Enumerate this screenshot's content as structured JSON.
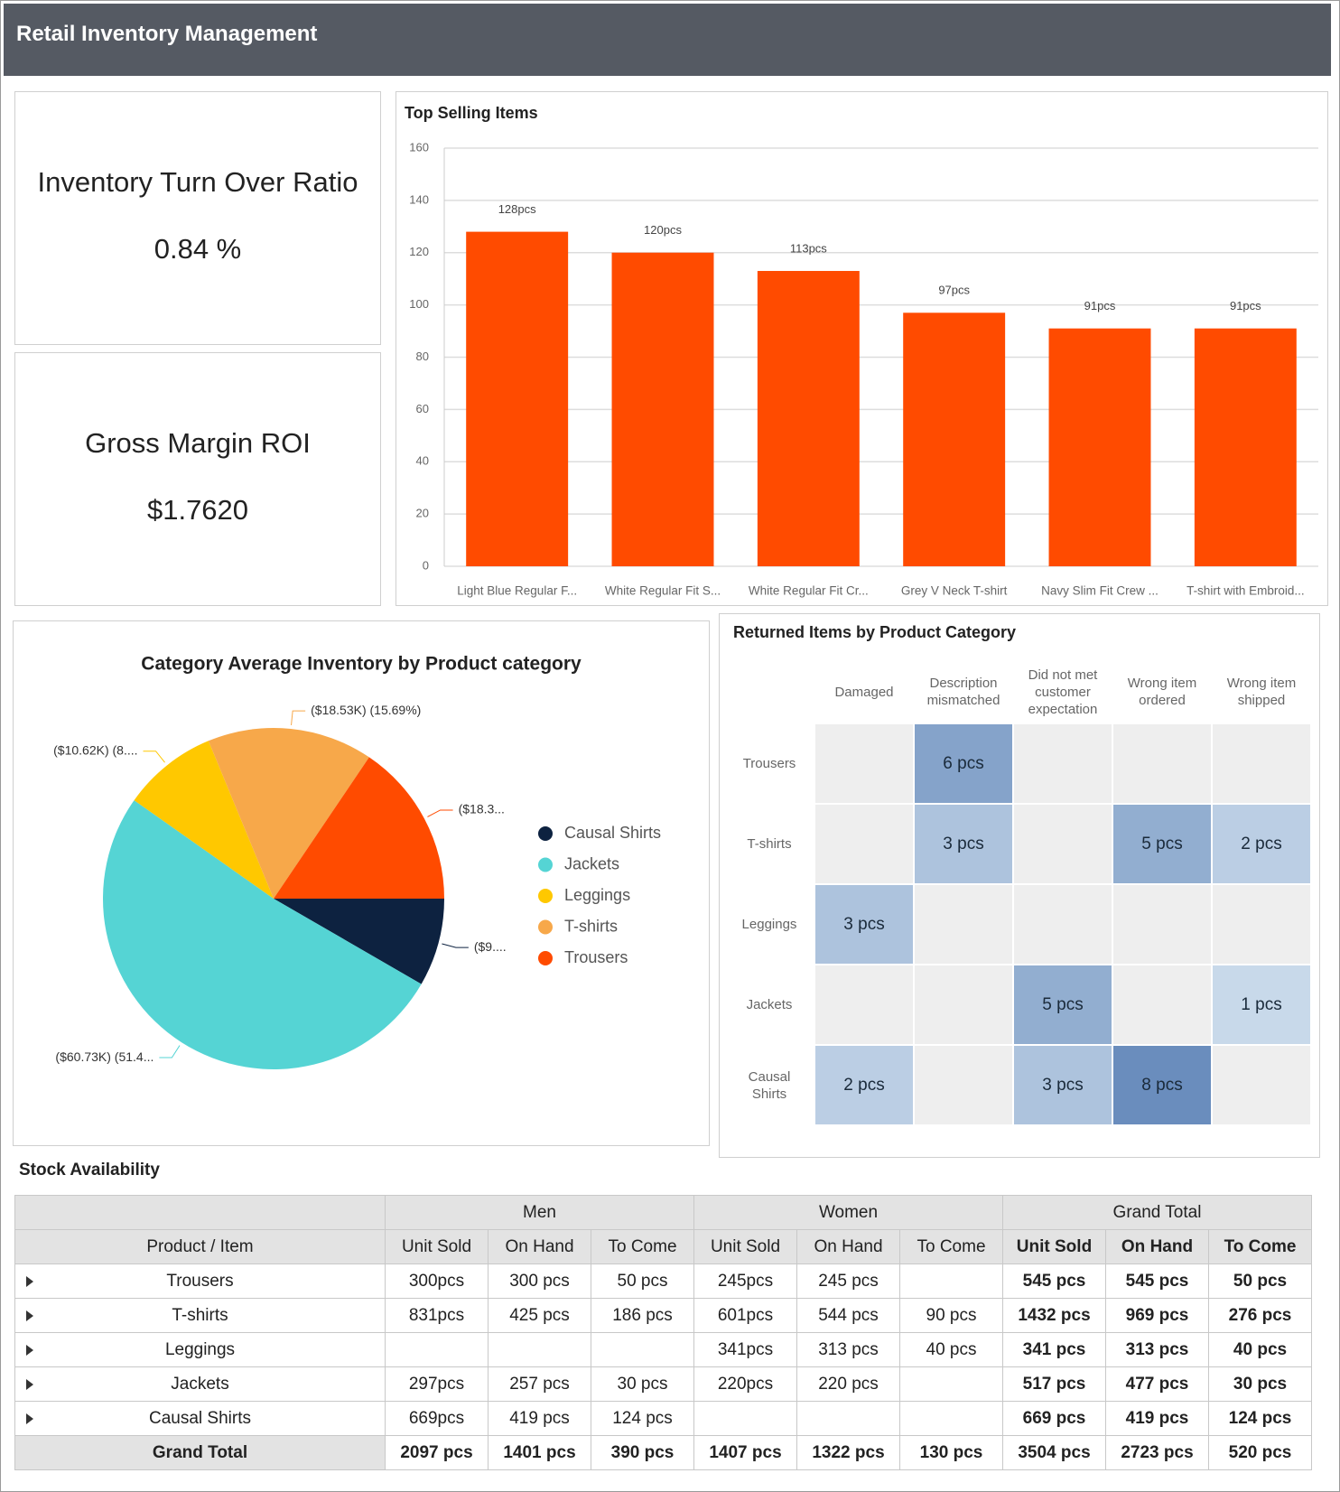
{
  "header": {
    "title": "Retail Inventory Management"
  },
  "kpis": [
    {
      "label": "Inventory Turn Over Ratio",
      "value": "0.84 %"
    },
    {
      "label": "Gross Margin ROI",
      "value": "$1.7620"
    }
  ],
  "chart_data": [
    {
      "type": "bar",
      "title": "Top Selling Items",
      "categories": [
        "Light Blue Regular F...",
        "White Regular Fit S...",
        "White Regular Fit Cr...",
        "Grey V Neck T-shirt",
        "Navy Slim Fit Crew ...",
        "T-shirt with Embroid..."
      ],
      "values": [
        128,
        120,
        113,
        97,
        91,
        91
      ],
      "value_labels": [
        "128pcs",
        "120pcs",
        "113pcs",
        "97pcs",
        "91pcs",
        "91pcs"
      ],
      "color": "#ff4b00",
      "ylim": [
        0,
        160
      ],
      "yticks": [
        0,
        20,
        40,
        60,
        80,
        100,
        120,
        140,
        160
      ],
      "grid": true
    },
    {
      "type": "pie",
      "title": "Category Average Inventory by Product category",
      "categories": [
        "Causal Shirts",
        "Jackets",
        "Leggings",
        "T-shirts",
        "Trousers"
      ],
      "values": [
        9.85,
        60.73,
        10.62,
        18.53,
        18.35
      ],
      "value_labels": [
        "($9....",
        "($60.73K) (51.4...",
        "($10.62K) (8....",
        "($18.53K) (15.69%)",
        "($18.3..."
      ],
      "colors": [
        "#0d2240",
        "#55d4d4",
        "#ffc800",
        "#f7a84a",
        "#ff4b00"
      ],
      "legend": "right"
    },
    {
      "type": "heatmap",
      "title": "Returned Items by Product Category",
      "x_categories": [
        "Damaged",
        "Description mismatched",
        "Did not met customer expectation",
        "Wrong item ordered",
        "Wrong item shipped"
      ],
      "y_categories": [
        "Trousers",
        "T-shirts",
        "Leggings",
        "Jackets",
        "Causal Shirts"
      ],
      "values": [
        [
          null,
          6,
          null,
          null,
          null
        ],
        [
          null,
          3,
          null,
          5,
          2
        ],
        [
          3,
          null,
          null,
          null,
          null
        ],
        [
          null,
          null,
          5,
          null,
          1
        ],
        [
          2,
          null,
          3,
          8,
          null
        ]
      ],
      "value_labels": [
        [
          null,
          "6 pcs",
          null,
          null,
          null
        ],
        [
          null,
          "3 pcs",
          null,
          "5 pcs",
          "2 pcs"
        ],
        [
          "3 pcs",
          null,
          null,
          null,
          null
        ],
        [
          null,
          null,
          "5 pcs",
          null,
          "1 pcs"
        ],
        [
          "2 pcs",
          null,
          "3 pcs",
          "8 pcs",
          null
        ]
      ],
      "color_scale": [
        "#c8d9ea",
        "#6a8dbd"
      ]
    }
  ],
  "table": {
    "title": "Stock Availability",
    "groups": [
      "Men",
      "Women",
      "Grand Total"
    ],
    "header": [
      "Product / Item",
      "Unit Sold",
      "On Hand",
      "To Come",
      "Unit Sold",
      "On Hand",
      "To Come",
      "Unit Sold",
      "On Hand",
      "To Come"
    ],
    "rows": [
      [
        "Trousers",
        "300pcs",
        "300 pcs",
        "50 pcs",
        "245pcs",
        "245 pcs",
        null,
        "545 pcs",
        "545 pcs",
        "50 pcs"
      ],
      [
        "T-shirts",
        "831pcs",
        "425 pcs",
        "186 pcs",
        "601pcs",
        "544 pcs",
        "90 pcs",
        "1432 pcs",
        "969 pcs",
        "276 pcs"
      ],
      [
        "Leggings",
        null,
        null,
        null,
        "341pcs",
        "313 pcs",
        "40 pcs",
        "341 pcs",
        "313 pcs",
        "40 pcs"
      ],
      [
        "Jackets",
        "297pcs",
        "257 pcs",
        "30 pcs",
        "220pcs",
        "220 pcs",
        null,
        "517 pcs",
        "477 pcs",
        "30 pcs"
      ],
      [
        "Causal Shirts",
        "669pcs",
        "419 pcs",
        "124 pcs",
        null,
        null,
        null,
        "669 pcs",
        "419 pcs",
        "124 pcs"
      ]
    ],
    "total": [
      "Grand Total",
      "2097 pcs",
      "1401 pcs",
      "390 pcs",
      "1407 pcs",
      "1322 pcs",
      "130 pcs",
      "3504 pcs",
      "2723 pcs",
      "520 pcs"
    ]
  }
}
